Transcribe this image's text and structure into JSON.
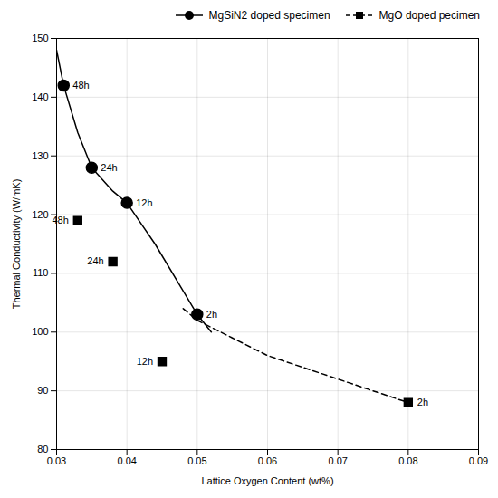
{
  "chart_data": {
    "type": "line",
    "xlabel": "Lattice Oxygen Content (wt%)",
    "ylabel": "Thermal Conductivity (W/mK)",
    "xlim": [
      0.03,
      0.09
    ],
    "ylim": [
      80,
      150
    ],
    "xticks": [
      0.03,
      0.04,
      0.05,
      0.06,
      0.07,
      0.08,
      0.09
    ],
    "yticks": [
      80,
      90,
      100,
      110,
      120,
      130,
      140,
      150
    ],
    "grid": true,
    "legend": "upper right",
    "series": [
      {
        "name": "MgSiN2 doped specimen",
        "color": "#000000",
        "marker": "circle",
        "line_style": "solid",
        "x": [
          0.031,
          0.035,
          0.04,
          0.05
        ],
        "values": [
          142,
          128,
          122,
          103
        ],
        "annotations": [
          "48h",
          "24h",
          "12h",
          "2h"
        ],
        "curve": {
          "x": [
            0.03,
            0.031,
            0.033,
            0.035,
            0.038,
            0.04,
            0.044,
            0.048,
            0.05,
            0.052
          ],
          "values": [
            148,
            142,
            134,
            128,
            124,
            122,
            115,
            107,
            103,
            100
          ]
        }
      },
      {
        "name": "MgO doped pecimen",
        "color": "#000000",
        "marker": "square",
        "line_style": "dashed",
        "x": [
          0.033,
          0.038,
          0.045,
          0.08
        ],
        "values": [
          119,
          112,
          95,
          88
        ],
        "annotations": [
          "48h",
          "24h",
          "12h",
          "2h"
        ],
        "curve": {
          "x": [
            0.048,
            0.05,
            0.055,
            0.06,
            0.065,
            0.07,
            0.075,
            0.08
          ],
          "values": [
            104,
            102,
            99,
            96,
            94,
            92,
            90,
            88
          ]
        }
      }
    ]
  }
}
